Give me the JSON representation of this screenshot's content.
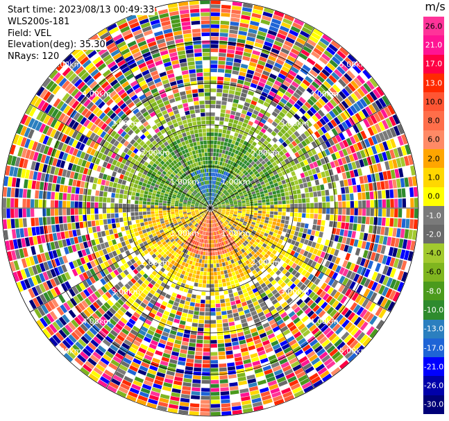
{
  "header": {
    "start_time": "Start time: 2023/08/13 00:49:33",
    "instrument": "WLS200s-181",
    "field": "Field: VEL",
    "elevation": "Elevation(deg): 35.30",
    "nrays": "NRays: 120"
  },
  "colorbar": {
    "unit": "m/s",
    "ticks": [
      "26.0",
      "21.0",
      "17.0",
      "13.0",
      "10.0",
      "8.0",
      "6.0",
      "2.0",
      "1.0",
      "0.0",
      "-1.0",
      "-2.0",
      "-4.0",
      "-6.0",
      "-8.0",
      "-10.0",
      "-13.0",
      "-17.0",
      "-21.0",
      "-26.0",
      "-30.0"
    ],
    "colors": [
      "#ff3399",
      "#ff1493",
      "#ff0044",
      "#ff2a00",
      "#ff5533",
      "#ff6e4a",
      "#ff8a66",
      "#ffa500",
      "#ffd700",
      "#ffff00",
      "#7a7a7a",
      "#6a6a6a",
      "#a2c92e",
      "#7fb51f",
      "#4b9a1c",
      "#2e8b2e",
      "#2b7fbf",
      "#1e64d6",
      "#0000ff",
      "#0000aa",
      "#000077"
    ]
  },
  "range_rings": {
    "labels": [
      "1.00km",
      "2.00km",
      "3.00km",
      "4.00km",
      "5.00km"
    ]
  },
  "icons": {
    "radar": "radar-ppi-icon"
  }
}
